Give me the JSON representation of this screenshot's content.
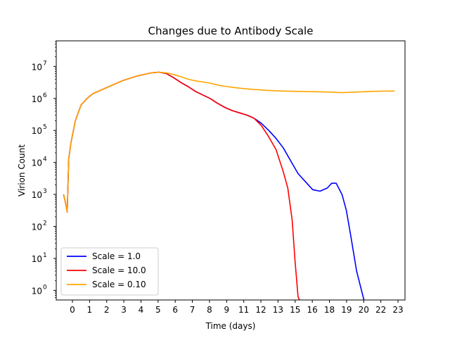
{
  "chart_data": {
    "type": "line",
    "title": "Changes due to Antibody Scale",
    "xlabel": "Time (days)",
    "ylabel": "Virion Count",
    "xlim": [
      -0.5,
      23.3
    ],
    "ylim_log10": [
      -0.3,
      7.8
    ],
    "yscale": "log",
    "x_ticks": [
      "0",
      "1",
      "2",
      "3",
      "4",
      "5",
      "6",
      "7",
      "8",
      "9",
      "11",
      "12",
      "13",
      "15",
      "16",
      "18",
      "19",
      "20",
      "22",
      "23"
    ],
    "y_ticks": [
      {
        "base": "10",
        "exp": "0"
      },
      {
        "base": "10",
        "exp": "1"
      },
      {
        "base": "10",
        "exp": "2"
      },
      {
        "base": "10",
        "exp": "3"
      },
      {
        "base": "10",
        "exp": "4"
      },
      {
        "base": "10",
        "exp": "5"
      },
      {
        "base": "10",
        "exp": "6"
      },
      {
        "base": "10",
        "exp": "7"
      }
    ],
    "grid": false,
    "legend_position": "lower-left",
    "series": [
      {
        "name": "Scale = 1.0",
        "color": "#0000ff",
        "x": [
          0,
          0.15,
          0.25,
          0.35,
          0.5,
          0.8,
          1.2,
          1.6,
          2,
          3,
          4,
          5,
          6,
          6.5,
          7,
          7.5,
          8,
          8.5,
          9,
          10,
          10.5,
          11,
          11.5,
          12,
          12.5,
          13,
          13.5,
          14,
          14.5,
          15,
          15.5,
          16,
          16.5,
          17,
          17.5,
          18,
          18.3,
          18.6,
          19,
          19.3,
          19.6,
          20,
          20.5
        ],
        "y_log10": [
          3.0,
          2.7,
          2.45,
          4.1,
          4.6,
          5.3,
          5.8,
          6.0,
          6.15,
          6.35,
          6.55,
          6.7,
          6.8,
          6.82,
          6.78,
          6.65,
          6.5,
          6.37,
          6.22,
          6.0,
          5.85,
          5.72,
          5.62,
          5.55,
          5.48,
          5.38,
          5.22,
          5.0,
          4.75,
          4.45,
          4.05,
          3.65,
          3.4,
          3.15,
          3.1,
          3.2,
          3.35,
          3.35,
          3.0,
          2.5,
          1.7,
          0.6,
          -0.3
        ]
      },
      {
        "name": "Scale = 10.0",
        "color": "#ff0000",
        "x": [
          0,
          0.15,
          0.25,
          0.35,
          0.5,
          0.8,
          1.2,
          1.6,
          2,
          3,
          4,
          5,
          6,
          6.5,
          7,
          7.5,
          8,
          8.5,
          9,
          10,
          10.5,
          11,
          11.5,
          12,
          12.5,
          13,
          13.5,
          14,
          14.5,
          15,
          15.3,
          15.6,
          15.8,
          16,
          16.1
        ],
        "y_log10": [
          3.0,
          2.7,
          2.45,
          4.1,
          4.6,
          5.3,
          5.8,
          6.0,
          6.15,
          6.35,
          6.55,
          6.7,
          6.8,
          6.82,
          6.78,
          6.65,
          6.5,
          6.37,
          6.22,
          6.0,
          5.85,
          5.72,
          5.62,
          5.55,
          5.48,
          5.38,
          5.15,
          4.8,
          4.4,
          3.7,
          3.2,
          2.2,
          0.9,
          -0.2,
          -0.3
        ]
      },
      {
        "name": "Scale = 0.10",
        "color": "#ffa500",
        "x": [
          0,
          0.15,
          0.25,
          0.35,
          0.5,
          0.8,
          1.2,
          1.6,
          2,
          3,
          4,
          5,
          6,
          6.5,
          7,
          7.5,
          8,
          8.5,
          9,
          10,
          10.5,
          11,
          11.5,
          12,
          13,
          14,
          15,
          16,
          17,
          18,
          19,
          20,
          21,
          22,
          22.6
        ],
        "y_log10": [
          3.0,
          2.7,
          2.45,
          4.1,
          4.6,
          5.3,
          5.8,
          6.0,
          6.15,
          6.35,
          6.55,
          6.7,
          6.8,
          6.82,
          6.8,
          6.75,
          6.68,
          6.6,
          6.55,
          6.48,
          6.42,
          6.38,
          6.35,
          6.32,
          6.28,
          6.25,
          6.23,
          6.22,
          6.21,
          6.2,
          6.18,
          6.2,
          6.22,
          6.23,
          6.23
        ]
      }
    ]
  }
}
